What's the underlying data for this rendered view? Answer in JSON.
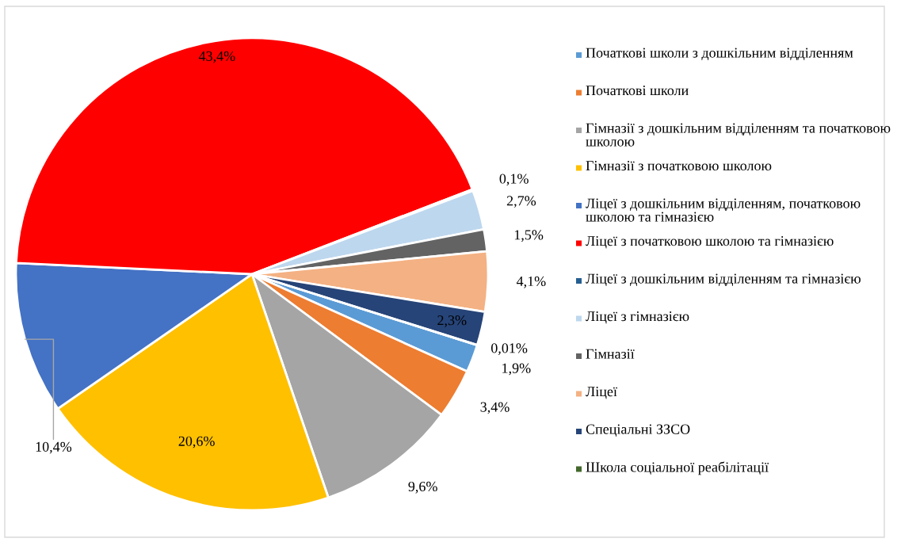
{
  "chart_data": {
    "type": "pie",
    "categories": [
      "Початкові школи з дошкільним відділенням",
      "Початкові школи",
      "Гімназії з дошкільним відділенням та початковою школою",
      "Гімназії з початковою школою",
      "Ліцеї з дошкільним відділенням, початковою школою та гімназією",
      "Ліцеї з початковою школою та гімназією",
      "Ліцеї з дошкільним відділенням та гімназією",
      "Ліцеї з гімназією",
      "Гімназії",
      "Ліцеї",
      "Спеціальні ЗЗСО",
      "Школа соціальної реабілітації"
    ],
    "values": [
      1.9,
      3.4,
      9.6,
      20.6,
      10.4,
      43.4,
      0.1,
      2.7,
      1.5,
      4.1,
      2.3,
      0.01
    ],
    "value_labels": [
      "1,9%",
      "3,4%",
      "9,6%",
      "20,6%",
      "10,4%",
      "43,4%",
      "0,1%",
      "2,7%",
      "1,5%",
      "4,1%",
      "2,3%",
      "0,01%"
    ],
    "colors": [
      "#5b9bd5",
      "#ed7d31",
      "#a5a5a5",
      "#ffc000",
      "#4472c4",
      "#ff0000",
      "#255e91",
      "#bdd7ee",
      "#636363",
      "#f4b183",
      "#264478",
      "#43682b"
    ],
    "legend": "right"
  }
}
